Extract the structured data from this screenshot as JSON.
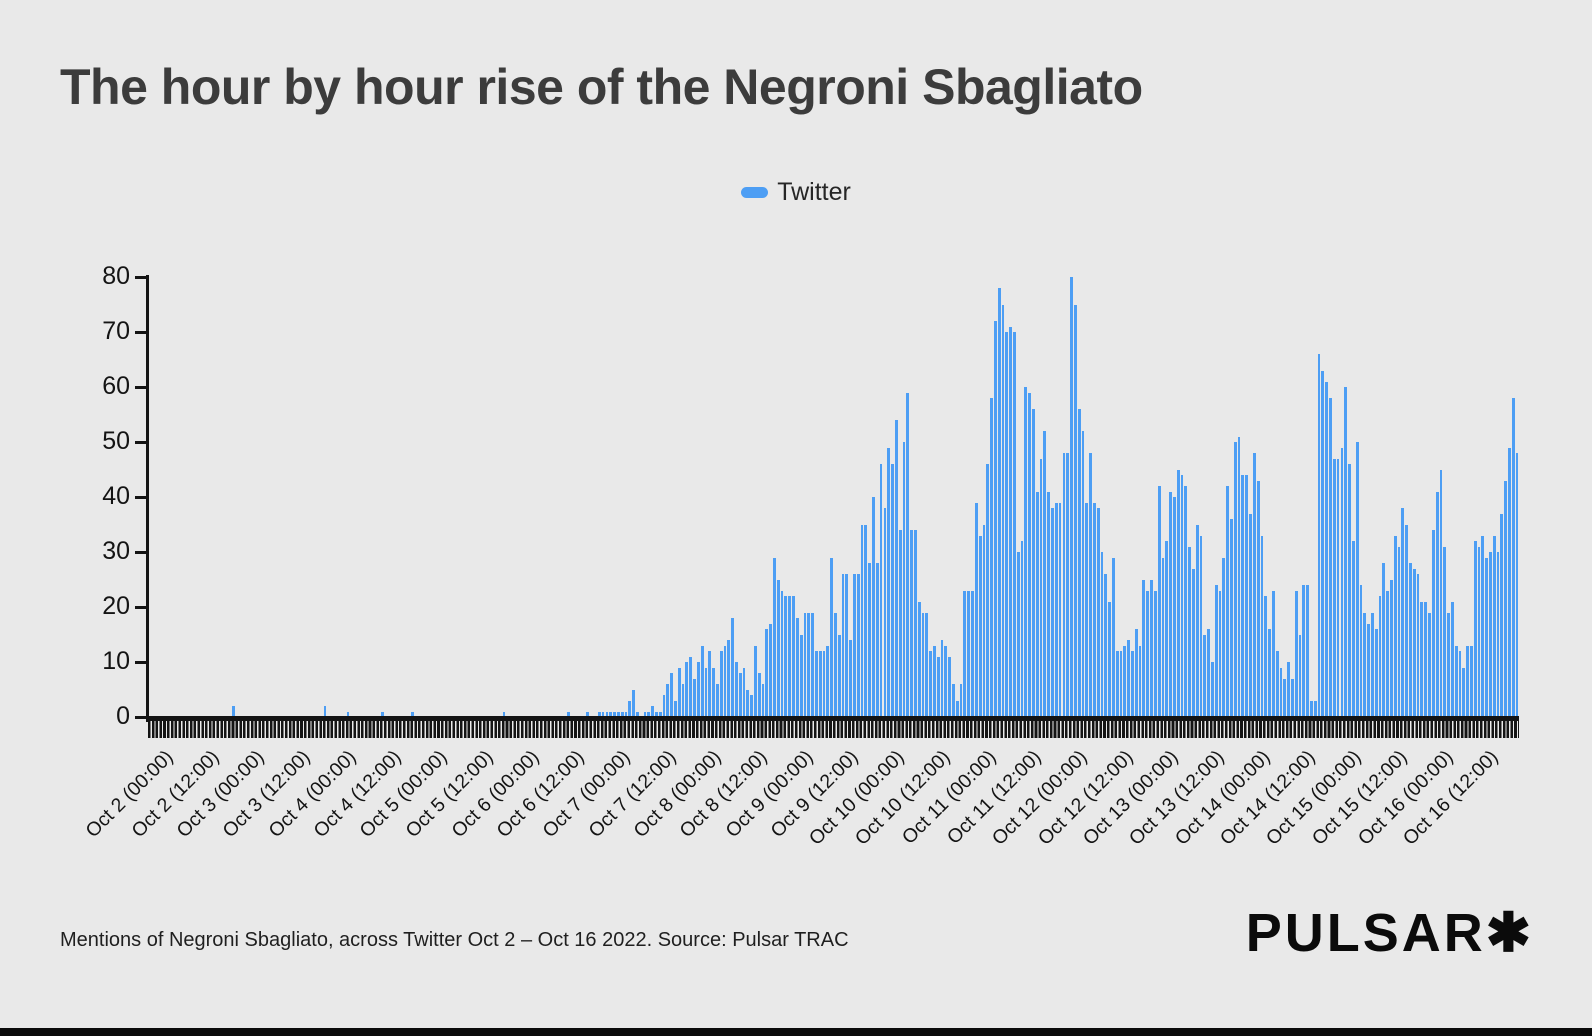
{
  "title": "The hour by hour rise of the Negroni Sbagliato",
  "legend": {
    "label": "Twitter",
    "color": "#4d9ef4"
  },
  "footer": {
    "caption": "Mentions of Negroni Sbagliato, across Twitter Oct 2 – Oct 16 2022. Source: Pulsar TRAC",
    "logo": "PULSAR✱"
  },
  "chart_data": {
    "type": "bar",
    "title": "The hour by hour rise of the Negroni Sbagliato",
    "xlabel": "",
    "ylabel": "",
    "x_unit": "hour",
    "x_start": "Oct 2 2022 00:00",
    "x_end": "Oct 16 2022 23:00",
    "ylim": [
      0,
      80
    ],
    "yticks": [
      0,
      10,
      20,
      30,
      40,
      50,
      60,
      70,
      80
    ],
    "grid": false,
    "legend_position": "top-center",
    "bar_color": "#4d9ef4",
    "background": "#e9e9e9",
    "xticklabels": [
      "Oct 2 (00:00)",
      "Oct 2 (12:00)",
      "Oct 3 (00:00)",
      "Oct 3 (12:00)",
      "Oct 4 (00:00)",
      "Oct 4 (12:00)",
      "Oct 5 (00:00)",
      "Oct 5 (12:00)",
      "Oct 6 (00:00)",
      "Oct 6 (12:00)",
      "Oct 7 (00:00)",
      "Oct 7 (12:00)",
      "Oct 8 (00:00)",
      "Oct 8 (12:00)",
      "Oct 9 (00:00)",
      "Oct 9 (12:00)",
      "Oct 10 (00:00)",
      "Oct 10 (12:00)",
      "Oct 11 (00:00)",
      "Oct 11 (12:00)",
      "Oct 12 (00:00)",
      "Oct 12 (12:00)",
      "Oct 13 (00:00)",
      "Oct 13 (12:00)",
      "Oct 14 (00:00)",
      "Oct 14 (12:00)",
      "Oct 15 (00:00)",
      "Oct 15 (12:00)",
      "Oct 16 (00:00)",
      "Oct 16 (12:00)"
    ],
    "xticklabel_every_n_hours": 12,
    "series": [
      {
        "name": "Twitter",
        "values": [
          0,
          0,
          0,
          0,
          0,
          0,
          0,
          0,
          0,
          0,
          0,
          0,
          0,
          0,
          0,
          0,
          0,
          0,
          0,
          0,
          0,
          0,
          2,
          0,
          0,
          0,
          0,
          0,
          0,
          0,
          0,
          0,
          0,
          0,
          0,
          0,
          0,
          0,
          0,
          0,
          0,
          0,
          0,
          0,
          0,
          0,
          2,
          0,
          0,
          0,
          0,
          0,
          1,
          0,
          0,
          0,
          0,
          0,
          0,
          0,
          0,
          1,
          0,
          0,
          0,
          0,
          0,
          0,
          0,
          1,
          0,
          0,
          0,
          0,
          0,
          0,
          0,
          0,
          0,
          0,
          0,
          0,
          0,
          0,
          0,
          0,
          0,
          0,
          0,
          0,
          0,
          0,
          0,
          1,
          0,
          0,
          0,
          0,
          0,
          0,
          0,
          0,
          0,
          0,
          0,
          0,
          0,
          0,
          0,
          0,
          1,
          0,
          0,
          0,
          0,
          1,
          0,
          0,
          1,
          1,
          1,
          1,
          1,
          1,
          1,
          1,
          3,
          5,
          1,
          0,
          1,
          1,
          2,
          1,
          1,
          4,
          6,
          8,
          3,
          9,
          6,
          10,
          11,
          7,
          10,
          13,
          9,
          12,
          9,
          6,
          12,
          13,
          14,
          18,
          10,
          8,
          9,
          5,
          4,
          13,
          8,
          6,
          16,
          17,
          29,
          25,
          23,
          22,
          22,
          22,
          18,
          15,
          19,
          19,
          19,
          12,
          12,
          12,
          13,
          29,
          19,
          15,
          26,
          26,
          14,
          26,
          26,
          35,
          35,
          28,
          40,
          28,
          46,
          38,
          49,
          46,
          54,
          34,
          50,
          59,
          34,
          34,
          21,
          19,
          19,
          12,
          13,
          11,
          14,
          13,
          11,
          6,
          3,
          6,
          23,
          23,
          23,
          39,
          33,
          35,
          46,
          58,
          72,
          78,
          75,
          70,
          71,
          70,
          30,
          32,
          60,
          59,
          56,
          41,
          47,
          52,
          41,
          38,
          39,
          39,
          48,
          48,
          80,
          75,
          56,
          52,
          39,
          48,
          39,
          38,
          30,
          26,
          21,
          29,
          12,
          12,
          13,
          14,
          12,
          16,
          13,
          25,
          23,
          25,
          23,
          42,
          29,
          32,
          41,
          40,
          45,
          44,
          42,
          31,
          27,
          35,
          33,
          15,
          16,
          10,
          24,
          23,
          29,
          42,
          36,
          50,
          51,
          44,
          44,
          37,
          48,
          43,
          33,
          22,
          16,
          23,
          12,
          9,
          7,
          10,
          7,
          23,
          15,
          24,
          24,
          3,
          3,
          66,
          63,
          61,
          58,
          47,
          47,
          49,
          60,
          46,
          32,
          50,
          24,
          19,
          17,
          19,
          16,
          22,
          28,
          23,
          25,
          33,
          31,
          38,
          35,
          28,
          27,
          26,
          21,
          21,
          19,
          34,
          41,
          45,
          31,
          19,
          21,
          13,
          12,
          9,
          13,
          13,
          32,
          31,
          33,
          29,
          30,
          33,
          30,
          37,
          43,
          49,
          58,
          48
        ]
      }
    ]
  }
}
